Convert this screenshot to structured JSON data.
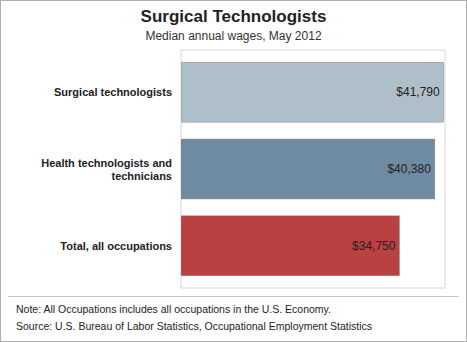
{
  "chart_data": {
    "type": "bar",
    "orientation": "horizontal",
    "title": "Surgical Technologists",
    "subtitle": "Median annual wages, May 2012",
    "categories": [
      "Surgical technologists",
      "Health technologists and technicians",
      "Total, all occupations"
    ],
    "values": [
      41790,
      40380,
      34750
    ],
    "value_labels": [
      "$41,790",
      "$40,380",
      "$34,750"
    ],
    "colors": [
      "#aebfca",
      "#6e8ba2",
      "#b94141"
    ],
    "xlim": [
      0,
      42000
    ],
    "tick_labels": false,
    "grid": false,
    "data_labels": true,
    "annotations": [
      "Note: All Occupations includes all occupations in the U.S. Economy.",
      "Source: U.S. Bureau of Labor Statistics, Occupational Employment Statistics"
    ]
  }
}
